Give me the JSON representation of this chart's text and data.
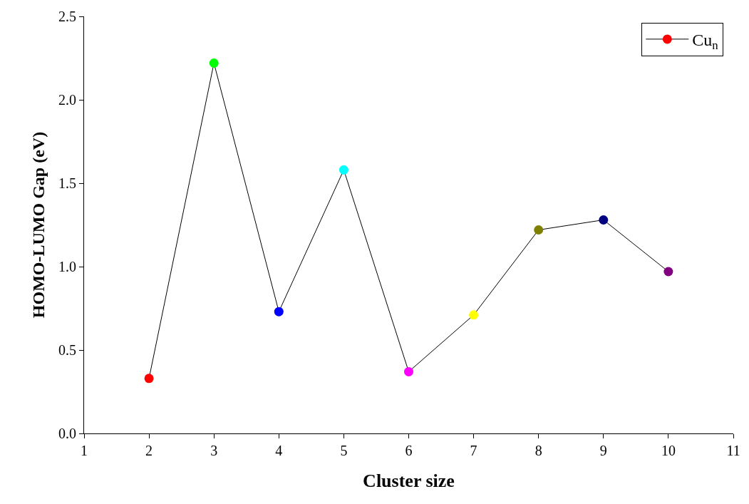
{
  "chart_data": {
    "type": "line",
    "xlabel": "Cluster size",
    "ylabel": "HOMO-LUMO Gap (eV)",
    "x": [
      2,
      3,
      4,
      5,
      6,
      7,
      8,
      9,
      10
    ],
    "series": [
      {
        "name": "Cu$_{n}$",
        "color": "#000000",
        "colors": [
          "#ff0000",
          "#00ff00",
          "#0000ff",
          "#00ffff",
          "#ff00ff",
          "#ffff00",
          "#808000",
          "#000080",
          "#800080"
        ],
        "values": [
          0.33,
          2.22,
          0.73,
          1.58,
          0.37,
          0.71,
          1.22,
          1.28,
          0.97
        ]
      }
    ],
    "xlim": [
      1,
      11
    ],
    "xticks": [
      1,
      2,
      3,
      4,
      5,
      6,
      7,
      8,
      9,
      10,
      11
    ],
    "ylim": [
      0,
      2.5
    ],
    "yticks": [
      {
        "value": 0,
        "label": "0.0"
      },
      {
        "value": 0.5,
        "label": "0.5"
      },
      {
        "value": 1,
        "label": "1.0"
      },
      {
        "value": 1.5,
        "label": "1.5"
      },
      {
        "value": 2,
        "label": "2.0"
      },
      {
        "value": 2.5,
        "label": "2.5"
      }
    ],
    "marker": "circle",
    "line_style": "solid",
    "legend": "top right"
  }
}
